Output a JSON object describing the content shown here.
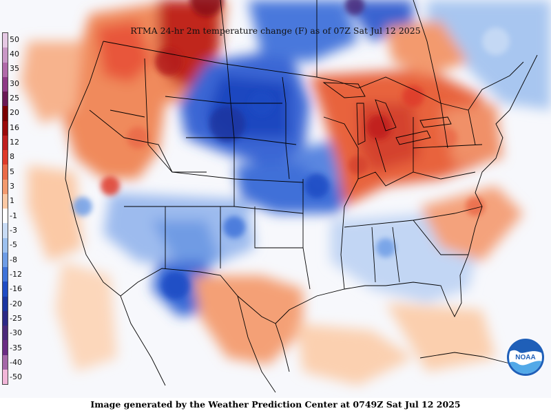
{
  "title": "RTMA 24-hr 2m temperature change (F) as of 07Z Sat Jul 12 2025",
  "footer": "Image generated by the Weather Prediction Center at 0749Z Sat Jul 12 2025",
  "logo": {
    "text": "NOAA",
    "colors": {
      "blue": "#1f5fb8",
      "light_blue": "#52a9e8",
      "white": "#ffffff"
    }
  },
  "legend": {
    "labels": [
      "50",
      "40",
      "35",
      "30",
      "25",
      "20",
      "16",
      "12",
      "8",
      "5",
      "3",
      "1",
      "-1",
      "-3",
      "-5",
      "-8",
      "-12",
      "-16",
      "-20",
      "-25",
      "-30",
      "-35",
      "-40",
      "-50"
    ],
    "colors": [
      "#e6c9e4",
      "#c998c6",
      "#b06aa9",
      "#8e3a86",
      "#6a1a55",
      "#7a0000",
      "#9a0a0a",
      "#bf1e1e",
      "#de3a2a",
      "#ea6a48",
      "#f39a6e",
      "#fbc9a4",
      "#ffffff",
      "#c9dcf5",
      "#9dc1ef",
      "#6e9de6",
      "#3f73d9",
      "#1f4cc4",
      "#1a35a0",
      "#2c2a86",
      "#4a2a7a",
      "#6a2d83",
      "#a467a8",
      "#f2b6d9"
    ]
  },
  "map_colors": {
    "land": "#fdf6ec",
    "ocean": "#f7f7fb",
    "boundaries": "#000000"
  }
}
